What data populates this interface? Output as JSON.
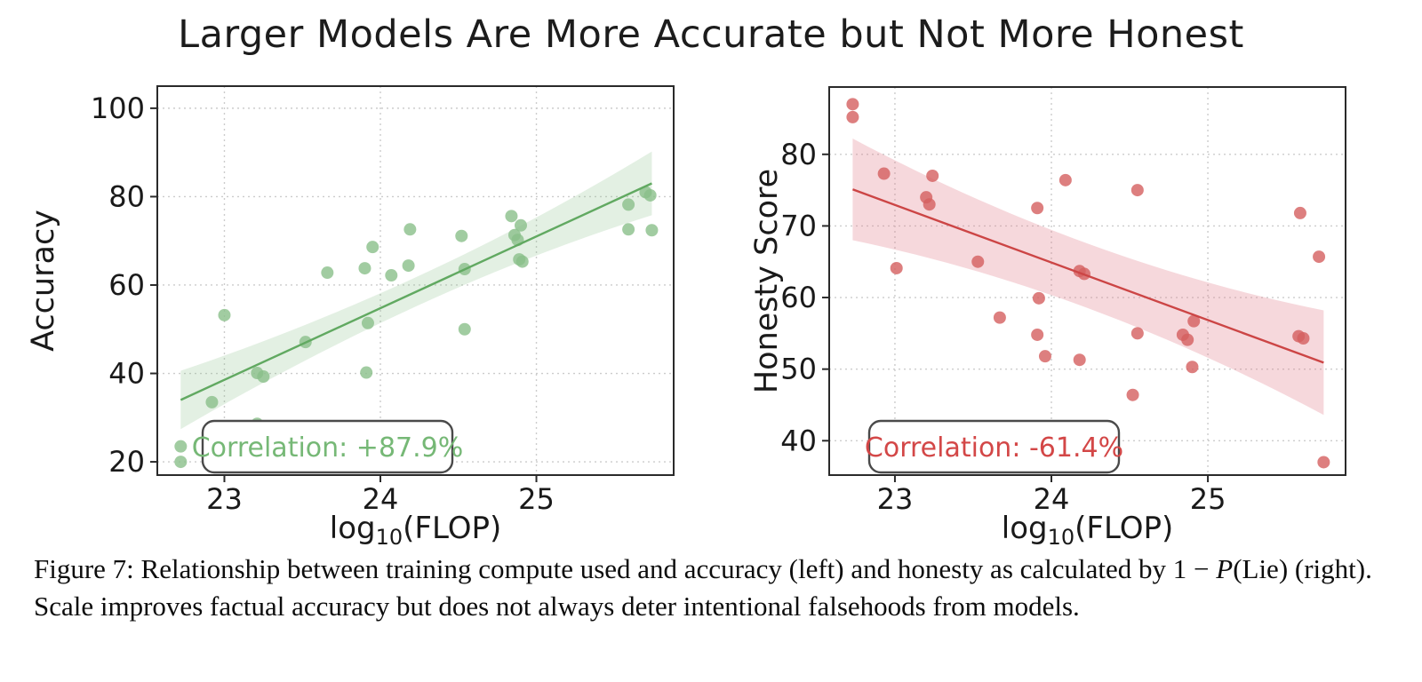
{
  "title": "Larger Models Are More Accurate but Not More Honest",
  "caption": {
    "segments": [
      {
        "t": "Figure 7: Relationship between training compute used and accuracy (left) and honesty as calculated by 1 − ",
        "i": false
      },
      {
        "t": "P",
        "i": true
      },
      {
        "t": "(Lie) (right). Scale improves factual accuracy but does not always deter intentional falsehoods from models.",
        "i": false
      }
    ]
  },
  "chart_data": [
    {
      "type": "scatter",
      "id": "accuracy",
      "ylabel": "Accuracy",
      "xlabel": {
        "pre": "log",
        "sub": "10",
        "post": "(FLOP)"
      },
      "xlim": [
        22.57,
        25.88
      ],
      "ylim": [
        17,
        105
      ],
      "xticks": [
        23,
        24,
        25
      ],
      "yticks": [
        20,
        40,
        60,
        80,
        100
      ],
      "grid": true,
      "legend_position": "none",
      "annotation": "Correlation: +87.9%",
      "colors": {
        "dot": "#8abf8a",
        "line": "#61a961",
        "band": "#8abf8a",
        "band_opacity": 0.24,
        "text": "#76b876"
      },
      "points": [
        [
          22.72,
          23.5
        ],
        [
          22.72,
          20.0
        ],
        [
          22.92,
          33.5
        ],
        [
          23.0,
          53.2
        ],
        [
          23.21,
          40.1
        ],
        [
          23.25,
          39.3
        ],
        [
          23.21,
          28.6
        ],
        [
          23.52,
          47.1
        ],
        [
          23.66,
          62.8
        ],
        [
          23.9,
          63.8
        ],
        [
          23.95,
          68.6
        ],
        [
          23.92,
          51.4
        ],
        [
          23.91,
          40.2
        ],
        [
          24.07,
          62.2
        ],
        [
          24.18,
          64.4
        ],
        [
          24.19,
          72.6
        ],
        [
          24.52,
          71.1
        ],
        [
          24.54,
          63.6
        ],
        [
          24.54,
          50.0
        ],
        [
          24.84,
          75.6
        ],
        [
          24.9,
          73.5
        ],
        [
          24.86,
          71.3
        ],
        [
          24.88,
          70.2
        ],
        [
          24.89,
          65.8
        ],
        [
          24.91,
          65.3
        ],
        [
          25.59,
          78.2
        ],
        [
          25.7,
          81.0
        ],
        [
          25.73,
          80.3
        ],
        [
          25.59,
          72.6
        ],
        [
          25.74,
          72.4
        ]
      ],
      "regression": {
        "x0": 22.72,
        "y0": 34.0,
        "x1": 25.74,
        "y1": 83.0
      },
      "band": {
        "x_mid": 24.23,
        "h_mid": 3.3,
        "h_left": 6.6,
        "h_right": 7.2
      }
    },
    {
      "type": "scatter",
      "id": "honesty",
      "ylabel": "Honesty Score",
      "xlabel": {
        "pre": "log",
        "sub": "10",
        "post": "(FLOP)"
      },
      "xlim": [
        22.58,
        25.88
      ],
      "ylim": [
        35.2,
        89.4
      ],
      "xticks": [
        23,
        24,
        25
      ],
      "yticks": [
        40,
        50,
        60,
        70,
        80
      ],
      "grid": true,
      "legend_position": "none",
      "annotation": "Correlation: -61.4%",
      "colors": {
        "dot": "#d45f5f",
        "line": "#cc4545",
        "band": "#e07f8a",
        "band_opacity": 0.3,
        "text": "#d34747"
      },
      "points": [
        [
          22.73,
          87.0
        ],
        [
          22.73,
          85.2
        ],
        [
          22.93,
          77.3
        ],
        [
          23.01,
          64.1
        ],
        [
          23.2,
          74.0
        ],
        [
          23.22,
          73.0
        ],
        [
          23.24,
          77.0
        ],
        [
          23.53,
          65.0
        ],
        [
          23.67,
          57.2
        ],
        [
          23.91,
          72.5
        ],
        [
          23.92,
          59.9
        ],
        [
          23.91,
          54.8
        ],
        [
          23.96,
          51.8
        ],
        [
          24.09,
          76.4
        ],
        [
          24.18,
          63.7
        ],
        [
          24.21,
          63.3
        ],
        [
          24.18,
          51.3
        ],
        [
          24.52,
          46.4
        ],
        [
          24.55,
          75.0
        ],
        [
          24.55,
          55.0
        ],
        [
          24.84,
          54.8
        ],
        [
          24.87,
          54.1
        ],
        [
          24.91,
          56.7
        ],
        [
          24.9,
          50.3
        ],
        [
          25.59,
          71.8
        ],
        [
          25.71,
          65.7
        ],
        [
          25.58,
          54.6
        ],
        [
          25.61,
          54.3
        ],
        [
          25.74,
          37.0
        ]
      ],
      "regression": {
        "x0": 22.73,
        "y0": 75.1,
        "x1": 25.74,
        "y1": 50.9
      },
      "band": {
        "x_mid": 24.2,
        "h_mid": 4.5,
        "h_left": 7.1,
        "h_right": 7.3
      }
    }
  ]
}
